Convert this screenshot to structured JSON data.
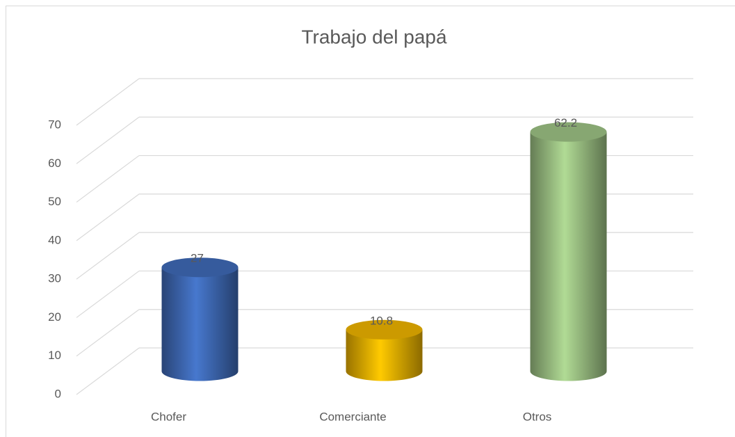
{
  "chart_data": {
    "type": "bar",
    "title": "Trabajo del papá",
    "categories": [
      "Chofer",
      "Comerciante",
      "Otros"
    ],
    "values": [
      27,
      10.8,
      62.2
    ],
    "colors": [
      "#4472c4",
      "#ffc000",
      "#a9d18e"
    ],
    "ylim": [
      0,
      70
    ],
    "yticks": [
      0,
      10,
      20,
      30,
      40,
      50,
      60,
      70
    ],
    "grid": true
  }
}
